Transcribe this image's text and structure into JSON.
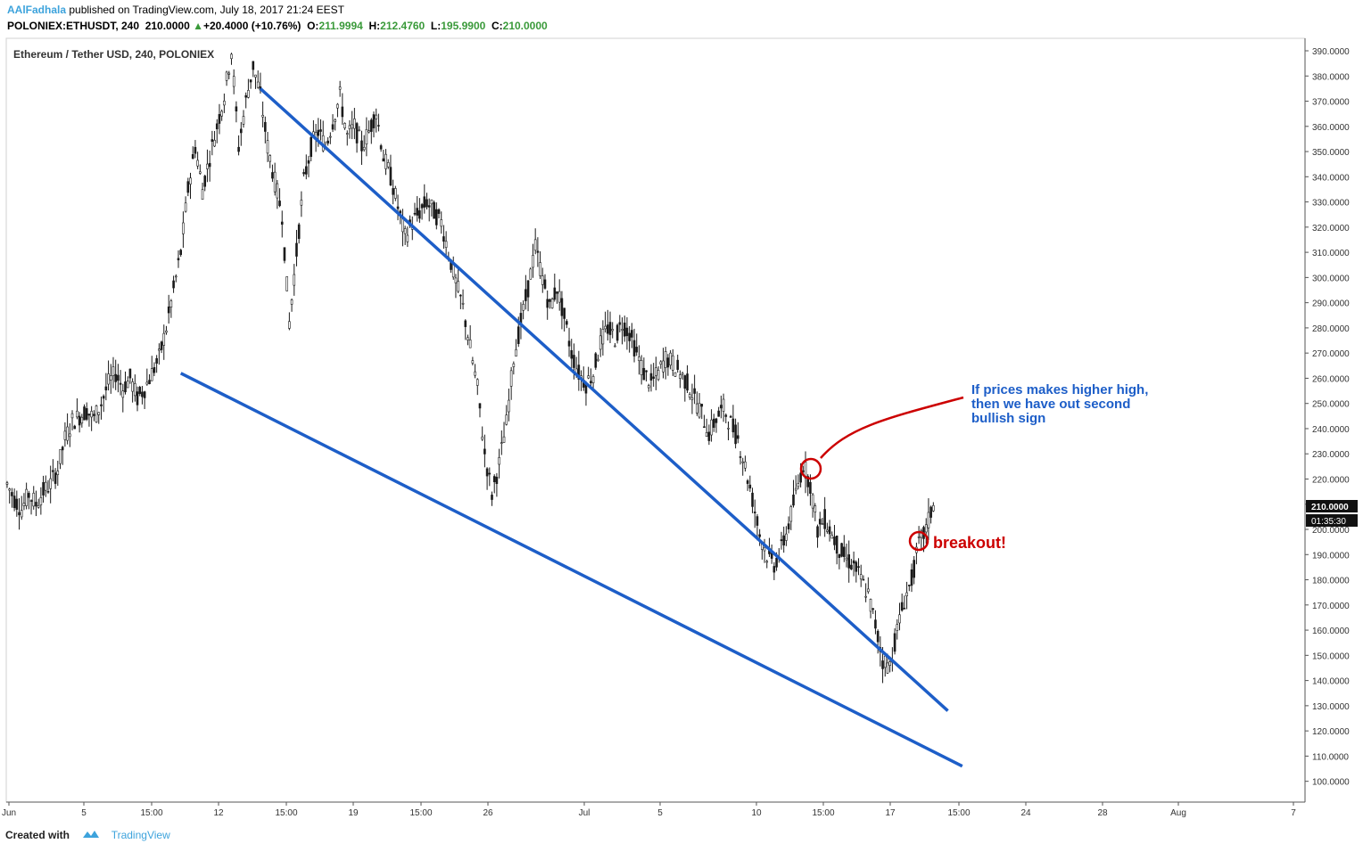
{
  "header": {
    "author": "AAlFadhala",
    "published": "published on TradingView.com, July 18, 2017 21:24 EEST",
    "symbol": "POLONIEX:ETHUSDT, 240",
    "last": "210.0000",
    "change_arrow": "▲",
    "change": "+20.4000 (+10.76%)",
    "o_label": "O:",
    "o_value": "211.9994",
    "h_label": "H:",
    "h_value": "212.4760",
    "l_label": "L:",
    "l_value": "195.9900",
    "c_label": "C:",
    "c_value": "210.0000"
  },
  "footer": {
    "created_with": "Created with",
    "brand": "TradingView"
  },
  "chart_data": {
    "type": "candlestick",
    "title": "Ethereum / Tether USD, 240, POLONIEX",
    "x_tick_labels": [
      "Jun",
      "5",
      "15:00",
      "12",
      "15:00",
      "19",
      "15:00",
      "26",
      "Jul",
      "5",
      "10",
      "15:00",
      "17",
      "15:00",
      "24",
      "28",
      "Aug",
      "7"
    ],
    "y_tick_labels": [
      "390.0000",
      "380.0000",
      "370.0000",
      "360.0000",
      "350.0000",
      "340.0000",
      "330.0000",
      "320.0000",
      "310.0000",
      "300.0000",
      "290.0000",
      "280.0000",
      "270.0000",
      "260.0000",
      "250.0000",
      "240.0000",
      "230.0000",
      "220.0000",
      "210.0000",
      "200.0000",
      "190.0000",
      "180.0000",
      "170.0000",
      "160.0000",
      "150.0000",
      "140.0000",
      "130.0000",
      "120.0000",
      "110.0000",
      "100.0000"
    ],
    "ylim": [
      92,
      392
    ],
    "price_label": "210.0000",
    "countdown_label": "01:35:30",
    "price_path": [
      [
        0,
        218
      ],
      [
        3,
        212
      ],
      [
        6,
        208
      ],
      [
        9,
        214
      ],
      [
        12,
        210
      ],
      [
        15,
        215
      ],
      [
        18,
        218
      ],
      [
        21,
        224
      ],
      [
        24,
        236
      ],
      [
        27,
        243
      ],
      [
        30,
        245
      ],
      [
        33,
        247
      ],
      [
        36,
        244
      ],
      [
        39,
        250
      ],
      [
        42,
        258
      ],
      [
        45,
        262
      ],
      [
        48,
        256
      ],
      [
        51,
        260
      ],
      [
        54,
        252
      ],
      [
        57,
        256
      ],
      [
        60,
        262
      ],
      [
        63,
        268
      ],
      [
        66,
        280
      ],
      [
        69,
        295
      ],
      [
        72,
        310
      ],
      [
        75,
        335
      ],
      [
        78,
        352
      ],
      [
        81,
        335
      ],
      [
        84,
        348
      ],
      [
        87,
        360
      ],
      [
        90,
        372
      ],
      [
        93,
        390
      ],
      [
        96,
        352
      ],
      [
        99,
        370
      ],
      [
        102,
        384
      ],
      [
        105,
        372
      ],
      [
        108,
        352
      ],
      [
        111,
        338
      ],
      [
        114,
        325
      ],
      [
        117,
        282
      ],
      [
        120,
        310
      ],
      [
        123,
        338
      ],
      [
        126,
        352
      ],
      [
        129,
        358
      ],
      [
        132,
        352
      ],
      [
        135,
        362
      ],
      [
        138,
        372
      ],
      [
        141,
        356
      ],
      [
        144,
        360
      ],
      [
        147,
        352
      ],
      [
        150,
        358
      ],
      [
        153,
        366
      ],
      [
        156,
        348
      ],
      [
        159,
        340
      ],
      [
        162,
        328
      ],
      [
        165,
        316
      ],
      [
        168,
        322
      ],
      [
        171,
        326
      ],
      [
        174,
        330
      ],
      [
        177,
        326
      ],
      [
        180,
        322
      ],
      [
        183,
        310
      ],
      [
        186,
        298
      ],
      [
        189,
        288
      ],
      [
        192,
        272
      ],
      [
        195,
        256
      ],
      [
        198,
        230
      ],
      [
        201,
        214
      ],
      [
        204,
        226
      ],
      [
        207,
        242
      ],
      [
        210,
        268
      ],
      [
        213,
        282
      ],
      [
        216,
        296
      ],
      [
        219,
        312
      ],
      [
        222,
        300
      ],
      [
        225,
        288
      ],
      [
        228,
        296
      ],
      [
        231,
        284
      ],
      [
        234,
        270
      ],
      [
        237,
        262
      ],
      [
        240,
        258
      ],
      [
        243,
        262
      ],
      [
        246,
        274
      ],
      [
        249,
        280
      ],
      [
        252,
        276
      ],
      [
        255,
        282
      ],
      [
        258,
        278
      ],
      [
        261,
        270
      ],
      [
        264,
        262
      ],
      [
        267,
        258
      ],
      [
        270,
        262
      ],
      [
        273,
        268
      ],
      [
        276,
        266
      ],
      [
        279,
        262
      ],
      [
        282,
        258
      ],
      [
        285,
        252
      ],
      [
        288,
        246
      ],
      [
        291,
        238
      ],
      [
        294,
        244
      ],
      [
        297,
        248
      ],
      [
        300,
        242
      ],
      [
        303,
        236
      ],
      [
        306,
        225
      ],
      [
        309,
        212
      ],
      [
        312,
        198
      ],
      [
        315,
        190
      ],
      [
        318,
        186
      ],
      [
        321,
        192
      ],
      [
        324,
        202
      ],
      [
        327,
        214
      ],
      [
        330,
        226
      ],
      [
        333,
        218
      ],
      [
        336,
        200
      ],
      [
        339,
        204
      ],
      [
        342,
        198
      ],
      [
        345,
        192
      ],
      [
        348,
        188
      ],
      [
        351,
        186
      ],
      [
        354,
        180
      ],
      [
        357,
        174
      ],
      [
        360,
        162
      ],
      [
        363,
        148
      ],
      [
        366,
        146
      ],
      [
        369,
        160
      ],
      [
        372,
        172
      ],
      [
        375,
        180
      ],
      [
        378,
        194
      ],
      [
        381,
        200
      ],
      [
        384,
        210
      ]
    ],
    "resistance_line": {
      "from": [
        105,
        375
      ],
      "to": [
        390,
        128
      ]
    },
    "support_line": {
      "from": [
        72,
        262
      ],
      "to": [
        396,
        106
      ]
    },
    "annotations": [
      {
        "text": "If prices makes higher high,",
        "color": "#1d5ec8"
      },
      {
        "text": "then we have out second",
        "color": "#1d5ec8"
      },
      {
        "text": "bullish sign",
        "color": "#1d5ec8"
      },
      {
        "text": "breakout!",
        "color": "#cc0000"
      }
    ],
    "colors": {
      "trendline": "#1d5ec8",
      "annotation_red": "#cc0000",
      "candles": "#1a1a1a"
    },
    "grid": false
  }
}
